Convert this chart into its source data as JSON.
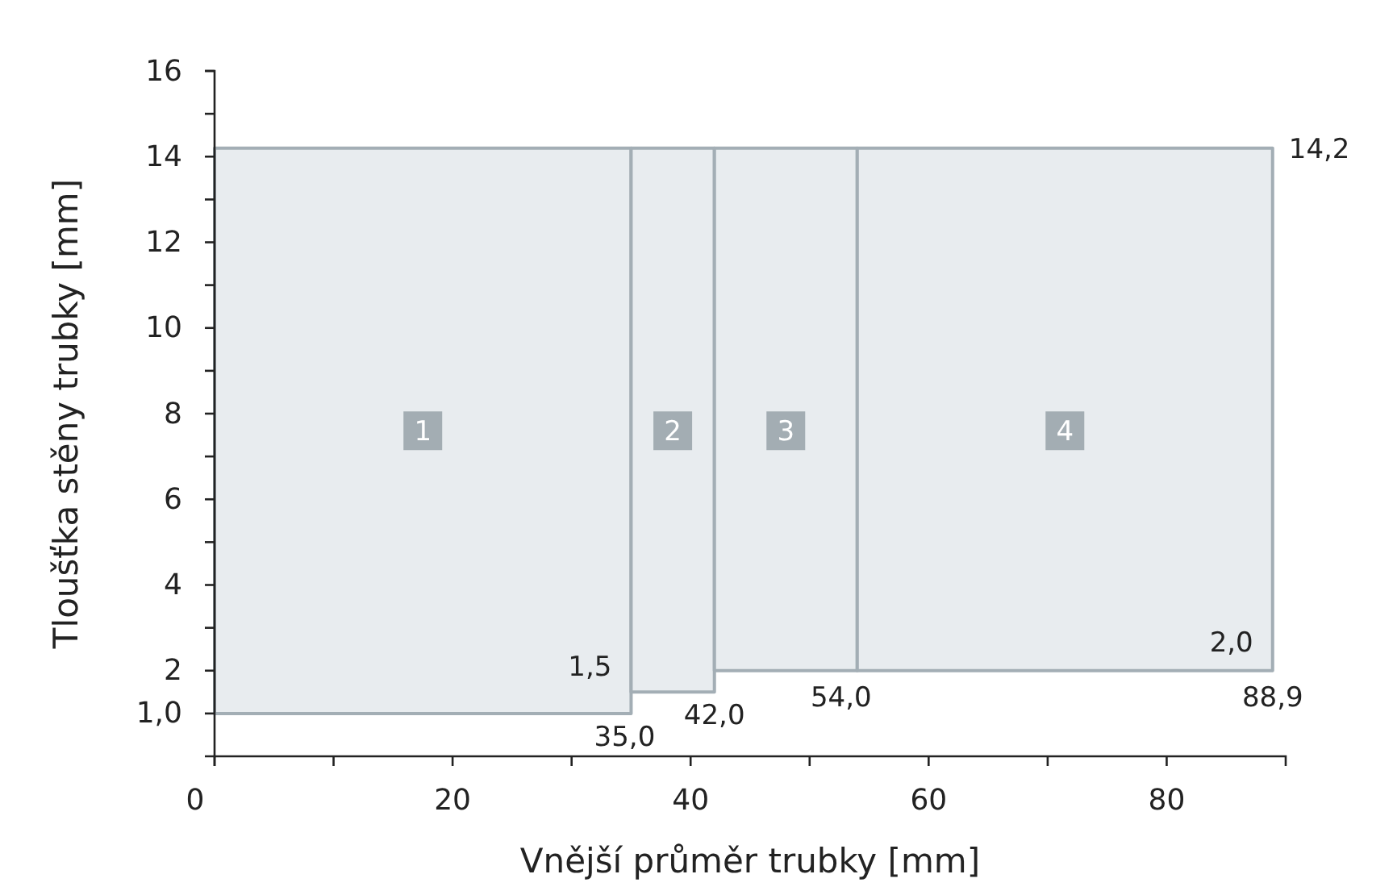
{
  "chart_data": {
    "type": "area",
    "xlabel": "Vnější průměr trubky [mm]",
    "ylabel": "Tloušťka stěny trubky [mm]",
    "xlim": [
      0,
      90
    ],
    "ylim": [
      0,
      16
    ],
    "xticks": [
      0,
      {
        "value": 10,
        "label": null
      },
      20,
      {
        "value": 30,
        "label": null
      },
      40,
      {
        "value": 50,
        "label": null
      },
      60,
      {
        "value": 70,
        "label": null
      },
      80
    ],
    "yticks": [
      {
        "value": 1,
        "label": "1,0"
      },
      2,
      {
        "value": 3,
        "label": null
      },
      4,
      {
        "value": 5,
        "label": null
      },
      6,
      {
        "value": 7,
        "label": null
      },
      8,
      {
        "value": 9,
        "label": null
      },
      10,
      {
        "value": 11,
        "label": null
      },
      12,
      {
        "value": 13,
        "label": null
      },
      14,
      {
        "value": 15,
        "label": null
      },
      16
    ],
    "series": [
      {
        "name": "1",
        "color": "#e8ecef",
        "x": [
          0,
          0,
          35,
          35
        ],
        "values": [
          1,
          14.2,
          14.2,
          1
        ]
      },
      {
        "name": "2",
        "color": "#e8ecef",
        "x": [
          35,
          35,
          42,
          42
        ],
        "values": [
          1.5,
          14.2,
          14.2,
          1.5
        ]
      },
      {
        "name": "3",
        "color": "#e8ecef",
        "x": [
          42,
          42,
          54,
          54
        ],
        "values": [
          2,
          14.2,
          14.2,
          2
        ]
      },
      {
        "name": "4",
        "color": "#e8ecef",
        "x": [
          54,
          54,
          88.9,
          88.9
        ],
        "values": [
          2,
          14.2,
          14.2,
          2
        ]
      }
    ],
    "annotations": [
      {
        "text": "1,5",
        "x": 35,
        "y": 1.5
      },
      {
        "text": "35,0",
        "x": 35,
        "y": 1
      },
      {
        "text": "42,0",
        "x": 42,
        "y": 1.5
      },
      {
        "text": "54,0",
        "x": 54,
        "y": 2
      },
      {
        "text": "2,0",
        "x": 88.9,
        "y": 2
      },
      {
        "text": "88,9",
        "x": 88.9,
        "y": 2
      },
      {
        "text": "14,2",
        "x": 88.9,
        "y": 14.2
      }
    ],
    "grid": false,
    "legend": false
  }
}
